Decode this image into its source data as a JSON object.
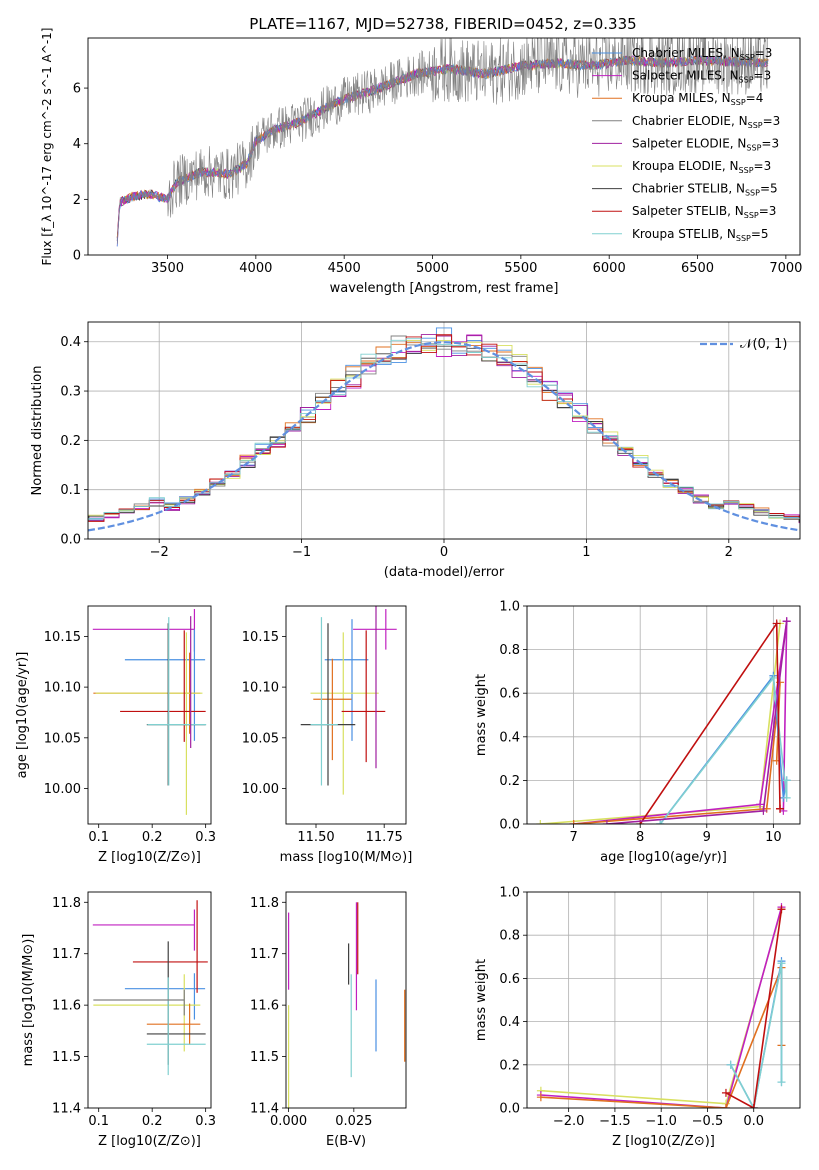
{
  "figure_title": "PLATE=1167, MJD=52738, FIBERID=0452, z=0.335",
  "colors": {
    "chabrier_miles": "#4a90e2",
    "salpeter_miles": "#c020c0",
    "kroupa_miles": "#e07020",
    "chabrier_elodie": "#808080",
    "salpeter_elodie": "#a020a0",
    "kroupa_elodie": "#d8e060",
    "chabrier_stelib": "#404040",
    "salpeter_stelib": "#c01010",
    "kroupa_stelib": "#80d0d0",
    "normal_curve": "#6090e0",
    "grid": "#b0b0b0"
  },
  "chart_data": [
    {
      "id": "spectrum",
      "type": "line",
      "xlabel": "wavelength [Angstrom, rest frame]",
      "ylabel": "Flux [f_λ 10^-17 erg cm^-2 s^-1 A^-1]",
      "xlim": [
        3050,
        7080
      ],
      "ylim": [
        0,
        7.8
      ],
      "xticks": [
        "3500",
        "4000",
        "4500",
        "5000",
        "5500",
        "6000",
        "6500",
        "7000"
      ],
      "yticks": [
        "0",
        "2",
        "4",
        "6"
      ],
      "legend_position": "top-right",
      "legend": [
        {
          "label": "Chabrier MILES, N",
          "sub": "SSP",
          "suffix": "=3",
          "color_key": "chabrier_miles"
        },
        {
          "label": "Salpeter MILES, N",
          "sub": "SSP",
          "suffix": "=3",
          "color_key": "salpeter_miles"
        },
        {
          "label": "Kroupa MILES, N",
          "sub": "SSP",
          "suffix": "=4",
          "color_key": "kroupa_miles"
        },
        {
          "label": "Chabrier ELODIE, N",
          "sub": "SSP",
          "suffix": "=3",
          "color_key": "chabrier_elodie"
        },
        {
          "label": "Salpeter ELODIE, N",
          "sub": "SSP",
          "suffix": "=3",
          "color_key": "salpeter_elodie"
        },
        {
          "label": "Kroupa ELODIE, N",
          "sub": "SSP",
          "suffix": "=3",
          "color_key": "kroupa_elodie"
        },
        {
          "label": "Chabrier STELIB, N",
          "sub": "SSP",
          "suffix": "=5",
          "color_key": "chabrier_stelib"
        },
        {
          "label": "Salpeter STELIB, N",
          "sub": "SSP",
          "suffix": "=3",
          "color_key": "salpeter_stelib"
        },
        {
          "label": "Kroupa STELIB, N",
          "sub": "SSP",
          "suffix": "=5",
          "color_key": "kroupa_stelib"
        }
      ],
      "series_continuum": {
        "x": [
          3210,
          3230,
          3300,
          3400,
          3500,
          3550,
          3700,
          3850,
          3950,
          4000,
          4100,
          4250,
          4400,
          4500,
          4700,
          4900,
          5100,
          5300,
          5500,
          5700,
          5900,
          6100,
          6300,
          6500,
          6700,
          6900
        ],
        "y": [
          0,
          1.9,
          2.1,
          2.2,
          2.0,
          2.6,
          3.0,
          2.9,
          3.3,
          4.1,
          4.5,
          4.8,
          5.3,
          5.6,
          6.0,
          6.5,
          6.7,
          6.5,
          6.8,
          6.9,
          6.8,
          7.0,
          6.9,
          7.0,
          6.95,
          6.9
        ]
      }
    },
    {
      "id": "residuals",
      "type": "histogram",
      "xlabel": "(data-model)/error",
      "ylabel": "Normed distribution",
      "xlim": [
        -2.5,
        2.5
      ],
      "ylim": [
        0,
        0.44
      ],
      "xticks": [
        "−2",
        "−1",
        "0",
        "1",
        "2"
      ],
      "yticks": [
        "0.0",
        "0.1",
        "0.2",
        "0.3",
        "0.4"
      ],
      "grid": true,
      "bins": 49,
      "legend": [
        {
          "label": "𝒩(0, 1)",
          "color_key": "normal_curve"
        }
      ],
      "legend_position": "top-right"
    },
    {
      "id": "age_vs_Z",
      "type": "errorbar",
      "xlabel": "Z [log10(Z/Z⊙)]",
      "ylabel": "age  [log10(age/yr)]",
      "xlim": [
        0.08,
        0.31
      ],
      "ylim": [
        9.965,
        10.18
      ],
      "xticks": [
        "0.1",
        "0.2",
        "0.3"
      ],
      "yticks": [
        "10.00",
        "10.05",
        "10.10",
        "10.15"
      ],
      "points": [
        {
          "x": 0.279,
          "xerr": [
            0.19,
            0.0
          ],
          "y": 10.157,
          "yerr": [
            0.022,
            0.02
          ],
          "color_key": "salpeter_miles"
        },
        {
          "x": 0.279,
          "xerr": [
            0.13,
            0.02
          ],
          "y": 10.127,
          "yerr": [
            0.08,
            0.03
          ],
          "color_key": "chabrier_miles"
        },
        {
          "x": 0.27,
          "xerr": [
            0.18,
            0.02
          ],
          "y": 10.094,
          "yerr": [
            0.04,
            0.04
          ],
          "color_key": "kroupa_miles"
        },
        {
          "x": 0.264,
          "xerr": [
            0.17,
            0.03
          ],
          "y": 10.094,
          "yerr": [
            0.12,
            0.06
          ],
          "color_key": "kroupa_elodie"
        },
        {
          "x": 0.26,
          "xerr": [
            0.12,
            0.04
          ],
          "y": 10.076,
          "yerr": [
            0.03,
            0.08
          ],
          "color_key": "salpeter_stelib"
        },
        {
          "x": 0.23,
          "xerr": [
            0.04,
            0.07
          ],
          "y": 10.063,
          "yerr": [
            0.06,
            0.1
          ],
          "color_key": "chabrier_stelib"
        },
        {
          "x": 0.231,
          "xerr": [
            0.04,
            0.07
          ],
          "y": 10.063,
          "yerr": [
            0.06,
            0.106
          ],
          "color_key": "kroupa_stelib"
        },
        {
          "x": 0.272,
          "xerr": [
            0.0,
            0.0
          ],
          "y": 10.08,
          "yerr": [
            0.04,
            0.09
          ],
          "color_key": "salpeter_elodie"
        }
      ]
    },
    {
      "id": "age_vs_mass",
      "type": "errorbar",
      "xlabel": "mass [log10(M/M⊙)]",
      "ylabel": "",
      "xlim": [
        11.39,
        11.83
      ],
      "ylim": [
        9.965,
        10.18
      ],
      "xticks": [
        "11.50",
        "11.75"
      ],
      "yticks": [
        "10.00",
        "10.05",
        "10.10",
        "10.15"
      ],
      "points": [
        {
          "x": 11.756,
          "xerr": [
            0.12,
            0.04
          ],
          "y": 10.157,
          "yerr": [
            0.02,
            0.02
          ],
          "color_key": "salpeter_miles"
        },
        {
          "x": 11.632,
          "xerr": [
            0.1,
            0.06
          ],
          "y": 10.127,
          "yerr": [
            0.08,
            0.04
          ],
          "color_key": "chabrier_miles"
        },
        {
          "x": 11.6,
          "xerr": [
            0.12,
            0.13
          ],
          "y": 10.094,
          "yerr": [
            0.1,
            0.06
          ],
          "color_key": "kroupa_elodie"
        },
        {
          "x": 11.56,
          "xerr": [
            0.07,
            0.07
          ],
          "y": 10.088,
          "yerr": [
            0.06,
            0.04
          ],
          "color_key": "kroupa_miles"
        },
        {
          "x": 11.684,
          "xerr": [
            0.09,
            0.07
          ],
          "y": 10.076,
          "yerr": [
            0.05,
            0.08
          ],
          "color_key": "salpeter_stelib"
        },
        {
          "x": 11.544,
          "xerr": [
            0.1,
            0.1
          ],
          "y": 10.063,
          "yerr": [
            0.06,
            0.1
          ],
          "color_key": "chabrier_stelib"
        },
        {
          "x": 11.52,
          "xerr": [
            0.04,
            0.06
          ],
          "y": 10.063,
          "yerr": [
            0.06,
            0.106
          ],
          "color_key": "kroupa_stelib"
        },
        {
          "x": 11.72,
          "xerr": [
            0.0,
            0.0
          ],
          "y": 10.08,
          "yerr": [
            0.06,
            0.1
          ],
          "color_key": "salpeter_elodie"
        }
      ]
    },
    {
      "id": "mass_weight_vs_age",
      "type": "line",
      "xlabel": "age  [log10(age/yr)]",
      "ylabel": "mass weight",
      "xlim": [
        6.3,
        10.4
      ],
      "ylim": [
        0,
        1.0
      ],
      "xticks": [
        "7",
        "8",
        "9",
        "10"
      ],
      "yticks": [
        "0.0",
        "0.2",
        "0.4",
        "0.6",
        "0.8",
        "1.0"
      ],
      "grid": true,
      "series": [
        {
          "color_key": "kroupa_elodie",
          "x": [
            6.5,
            9.8,
            10.1,
            9.8
          ],
          "y": [
            0.0,
            0.08,
            0.92,
            0.08
          ]
        },
        {
          "color_key": "salpeter_miles",
          "x": [
            7.0,
            9.8,
            10.2,
            10.15
          ],
          "y": [
            0.0,
            0.09,
            0.93,
            0.06
          ]
        },
        {
          "color_key": "kroupa_miles",
          "x": [
            7.0,
            9.9,
            10.1,
            10.05
          ],
          "y": [
            0.0,
            0.07,
            0.65,
            0.29
          ]
        },
        {
          "color_key": "chabrier_miles",
          "x": [
            8.3,
            10.0,
            10.15,
            10.2
          ],
          "y": [
            0.0,
            0.68,
            0.12,
            0.2
          ]
        },
        {
          "color_key": "kroupa_stelib",
          "x": [
            8.3,
            10.0,
            10.2,
            10.2
          ],
          "y": [
            0.0,
            0.67,
            0.12,
            0.2
          ]
        },
        {
          "color_key": "salpeter_stelib",
          "x": [
            8.0,
            10.05,
            10.1,
            10.1
          ],
          "y": [
            0.0,
            0.92,
            0.07,
            0.07
          ]
        },
        {
          "color_key": "salpeter_elodie",
          "x": [
            7.5,
            9.85,
            10.2
          ],
          "y": [
            0.0,
            0.06,
            0.93
          ]
        }
      ]
    },
    {
      "id": "mass_vs_Z",
      "type": "errorbar",
      "xlabel": "Z [log10(Z/Z⊙)]",
      "ylabel": "mass [log10(M/M⊙)]",
      "xlim": [
        0.08,
        0.31
      ],
      "ylim": [
        11.4,
        11.82
      ],
      "xticks": [
        "0.1",
        "0.2",
        "0.3"
      ],
      "yticks": [
        "11.4",
        "11.5",
        "11.6",
        "11.7",
        "11.8"
      ],
      "points": [
        {
          "x": 0.279,
          "xerr": [
            0.19,
            0.0
          ],
          "y": 11.756,
          "yerr": [
            0.05,
            0.03
          ],
          "color_key": "salpeter_miles"
        },
        {
          "x": 0.279,
          "xerr": [
            0.13,
            0.02
          ],
          "y": 11.632,
          "yerr": [
            0.06,
            0.03
          ],
          "color_key": "chabrier_miles"
        },
        {
          "x": 0.26,
          "xerr": [
            0.17,
            0.03
          ],
          "y": 11.6,
          "yerr": [
            0.09,
            0.06
          ],
          "color_key": "kroupa_elodie"
        },
        {
          "x": 0.27,
          "xerr": [
            0.08,
            0.02
          ],
          "y": 11.563,
          "yerr": [
            0.04,
            0.04
          ],
          "color_key": "kroupa_miles"
        },
        {
          "x": 0.284,
          "xerr": [
            0.12,
            0.02
          ],
          "y": 11.684,
          "yerr": [
            0.06,
            0.12
          ],
          "color_key": "salpeter_stelib"
        },
        {
          "x": 0.23,
          "xerr": [
            0.04,
            0.07
          ],
          "y": 11.544,
          "yerr": [
            0.06,
            0.18
          ],
          "color_key": "chabrier_stelib"
        },
        {
          "x": 0.23,
          "xerr": [
            0.04,
            0.07
          ],
          "y": 11.524,
          "yerr": [
            0.06,
            0.13
          ],
          "color_key": "kroupa_stelib"
        },
        {
          "x": 0.26,
          "xerr": [
            0.17,
            0.0
          ],
          "y": 11.61,
          "yerr": [
            0.03,
            0.02
          ],
          "color_key": "chabrier_elodie"
        }
      ]
    },
    {
      "id": "mass_vs_ebv",
      "type": "errorbar",
      "xlabel": "E(B-V)",
      "ylabel": "",
      "xlim": [
        -0.001,
        0.045
      ],
      "ylim": [
        11.4,
        11.82
      ],
      "xticks": [
        "0.000",
        "0.025"
      ],
      "yticks": [
        "11.4",
        "11.5",
        "11.6",
        "11.7",
        "11.8"
      ],
      "points": [
        {
          "x": 0.0,
          "y": 11.7,
          "yerr": [
            0.07,
            0.08
          ],
          "color_key": "salpeter_miles"
        },
        {
          "x": 0.0,
          "y": 11.5,
          "yerr": [
            0.1,
            0.1
          ],
          "color_key": "kroupa_elodie"
        },
        {
          "x": 0.023,
          "y": 11.68,
          "yerr": [
            0.04,
            0.04
          ],
          "color_key": "chabrier_stelib"
        },
        {
          "x": 0.026,
          "y": 11.73,
          "yerr": [
            0.14,
            0.07
          ],
          "color_key": "salpeter_miles"
        },
        {
          "x": 0.0265,
          "y": 11.73,
          "yerr": [
            0.07,
            0.07
          ],
          "color_key": "salpeter_stelib"
        },
        {
          "x": 0.024,
          "y": 11.56,
          "yerr": [
            0.1,
            0.1
          ],
          "color_key": "kroupa_stelib"
        },
        {
          "x": 0.0335,
          "y": 11.58,
          "yerr": [
            0.07,
            0.07
          ],
          "color_key": "chabrier_miles"
        },
        {
          "x": 0.0445,
          "y": 11.56,
          "yerr": [
            0.07,
            0.07
          ],
          "color_key": "kroupa_miles"
        }
      ]
    },
    {
      "id": "mass_weight_vs_Z",
      "type": "line",
      "xlabel": "Z [log10(Z/Z⊙)]",
      "ylabel": "mass weight",
      "xlim": [
        -2.45,
        0.5
      ],
      "ylim": [
        0,
        1.0
      ],
      "xticks": [
        "−2.0",
        "−1.5",
        "−1.0",
        "−0.5",
        "0.0"
      ],
      "yticks": [
        "0.0",
        "0.2",
        "0.4",
        "0.6",
        "0.8",
        "1.0"
      ],
      "grid": true,
      "series": [
        {
          "color_key": "kroupa_elodie",
          "x": [
            -2.3,
            -0.3,
            0.3,
            0.3
          ],
          "y": [
            0.08,
            0.02,
            0.92,
            0.92
          ]
        },
        {
          "color_key": "salpeter_miles",
          "x": [
            -2.3,
            -0.3,
            0.3
          ],
          "y": [
            0.06,
            0.0,
            0.93
          ]
        },
        {
          "color_key": "kroupa_miles",
          "x": [
            -2.3,
            -0.3,
            0.3,
            0.3
          ],
          "y": [
            0.05,
            0.0,
            0.65,
            0.29
          ]
        },
        {
          "color_key": "chabrier_miles",
          "x": [
            -0.25,
            0.0,
            0.3,
            0.3
          ],
          "y": [
            0.2,
            0.0,
            0.68,
            0.12
          ]
        },
        {
          "color_key": "kroupa_stelib",
          "x": [
            -0.25,
            0.0,
            0.3,
            0.3
          ],
          "y": [
            0.2,
            0.0,
            0.67,
            0.12
          ]
        },
        {
          "color_key": "salpeter_stelib",
          "x": [
            -0.3,
            0.0,
            0.3
          ],
          "y": [
            0.07,
            0.0,
            0.92
          ]
        }
      ]
    }
  ]
}
